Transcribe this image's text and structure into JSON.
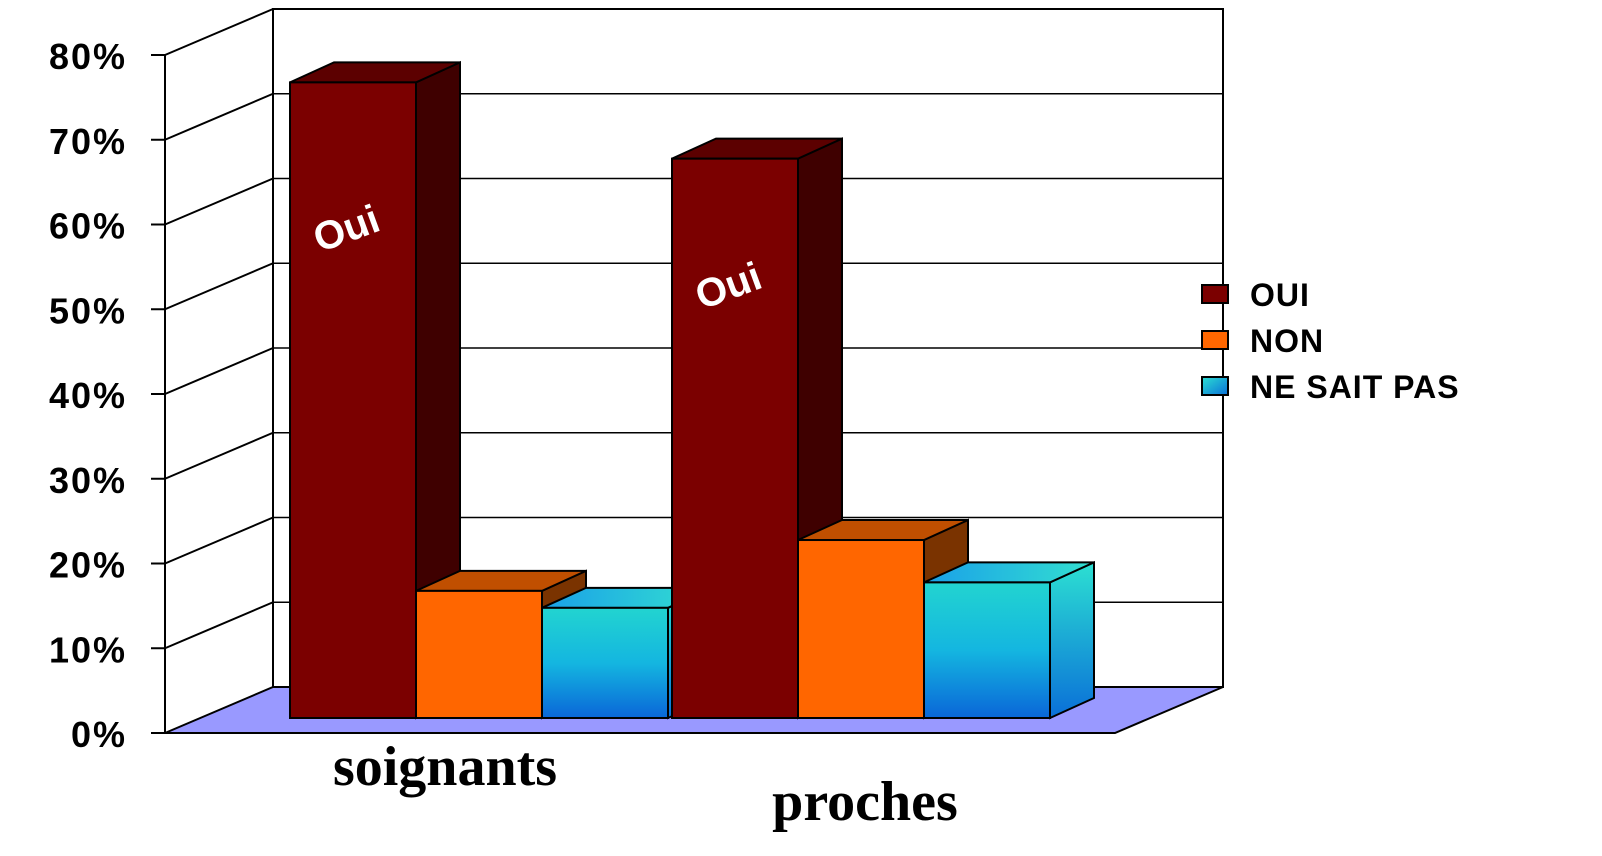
{
  "chart_data": {
    "type": "bar",
    "style": "3d-clustered-column",
    "categories": [
      "soignants",
      "proches"
    ],
    "series": [
      {
        "name": "OUI",
        "values": [
          75,
          66
        ],
        "color": "#7b0000",
        "side_color": "#3f0000",
        "top_color": "#5c0000",
        "bar_label": "Oui"
      },
      {
        "name": "NON",
        "values": [
          15,
          21
        ],
        "color": "#ff6600",
        "side_color": "#7a3300",
        "top_color": "#c04f00",
        "bar_label": ""
      },
      {
        "name": "NE SAIT PAS",
        "values": [
          13,
          16
        ],
        "color": "#1bc6dc",
        "side_color": "#10b8d6",
        "top_color": "#22d2d0",
        "bar_label": ""
      }
    ],
    "y_ticks": [
      "0%",
      "10%",
      "20%",
      "30%",
      "40%",
      "50%",
      "60%",
      "70%",
      "80%"
    ],
    "ylim": [
      0,
      80
    ],
    "y_unit": "%",
    "grid": true,
    "legend_position": "right",
    "floor_color": "#9999ff",
    "title": "",
    "xlabel": "",
    "ylabel": ""
  }
}
